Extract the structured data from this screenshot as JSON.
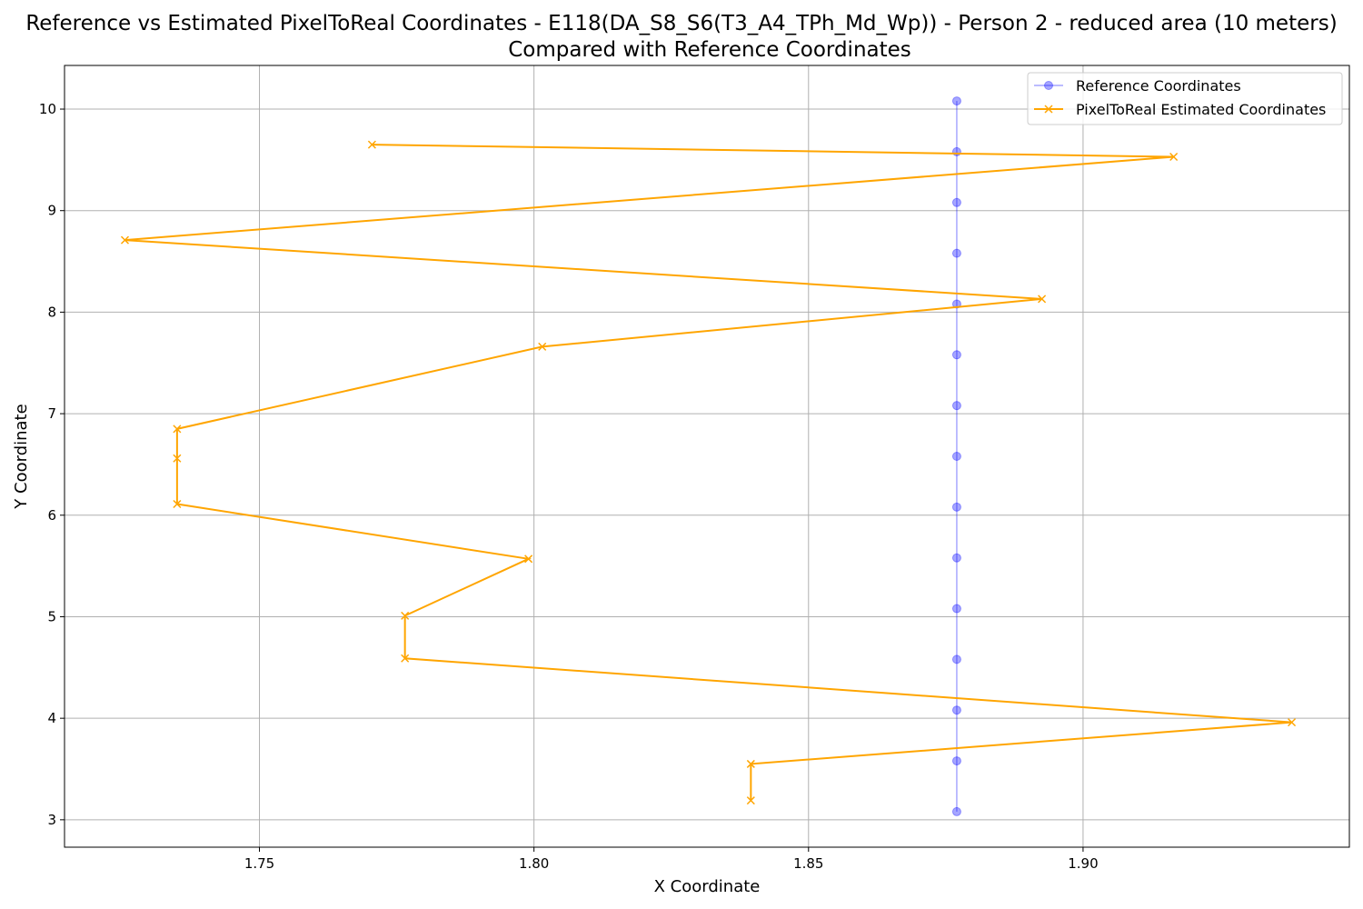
{
  "chart_data": {
    "type": "line",
    "title_line1": "Reference vs Estimated PixelToReal Coordinates - E118(DA_S8_S6(T3_A4_TPh_Md_Wp)) - Person 2 - reduced area (10 meters)",
    "title_line2": "Compared with Reference Coordinates",
    "xlabel": "X Coordinate",
    "ylabel": "Y Coordinate",
    "xlim": [
      1.7145,
      1.9485
    ],
    "ylim": [
      2.73,
      10.43
    ],
    "xticks": [
      1.75,
      1.8,
      1.85,
      1.9
    ],
    "xtick_labels": [
      "1.75",
      "1.80",
      "1.85",
      "1.90"
    ],
    "yticks": [
      3,
      4,
      5,
      6,
      7,
      8,
      9,
      10
    ],
    "ytick_labels": [
      "3",
      "4",
      "5",
      "6",
      "7",
      "8",
      "9",
      "10"
    ],
    "grid": true,
    "legend_position": "top-right",
    "series": [
      {
        "name": "Reference Coordinates",
        "color": "#0000ff",
        "marker": "circle",
        "points": [
          [
            1.877,
            10.08
          ],
          [
            1.877,
            9.58
          ],
          [
            1.877,
            9.08
          ],
          [
            1.877,
            8.58
          ],
          [
            1.877,
            8.08
          ],
          [
            1.877,
            7.58
          ],
          [
            1.877,
            7.08
          ],
          [
            1.877,
            6.58
          ],
          [
            1.877,
            6.08
          ],
          [
            1.877,
            5.58
          ],
          [
            1.877,
            5.08
          ],
          [
            1.877,
            4.58
          ],
          [
            1.877,
            4.08
          ],
          [
            1.877,
            3.58
          ],
          [
            1.877,
            3.08
          ]
        ]
      },
      {
        "name": "PixelToReal Estimated Coordinates",
        "color": "#ffa500",
        "marker": "x",
        "points": [
          [
            1.7705,
            9.65
          ],
          [
            1.9165,
            9.53
          ],
          [
            1.7255,
            8.71
          ],
          [
            1.8925,
            8.13
          ],
          [
            1.8015,
            7.66
          ],
          [
            1.735,
            6.85
          ],
          [
            1.735,
            6.56
          ],
          [
            1.735,
            6.11
          ],
          [
            1.799,
            5.57
          ],
          [
            1.7765,
            5.01
          ],
          [
            1.7765,
            4.59
          ],
          [
            1.938,
            3.96
          ],
          [
            1.8395,
            3.55
          ],
          [
            1.8395,
            3.19
          ]
        ]
      }
    ]
  }
}
